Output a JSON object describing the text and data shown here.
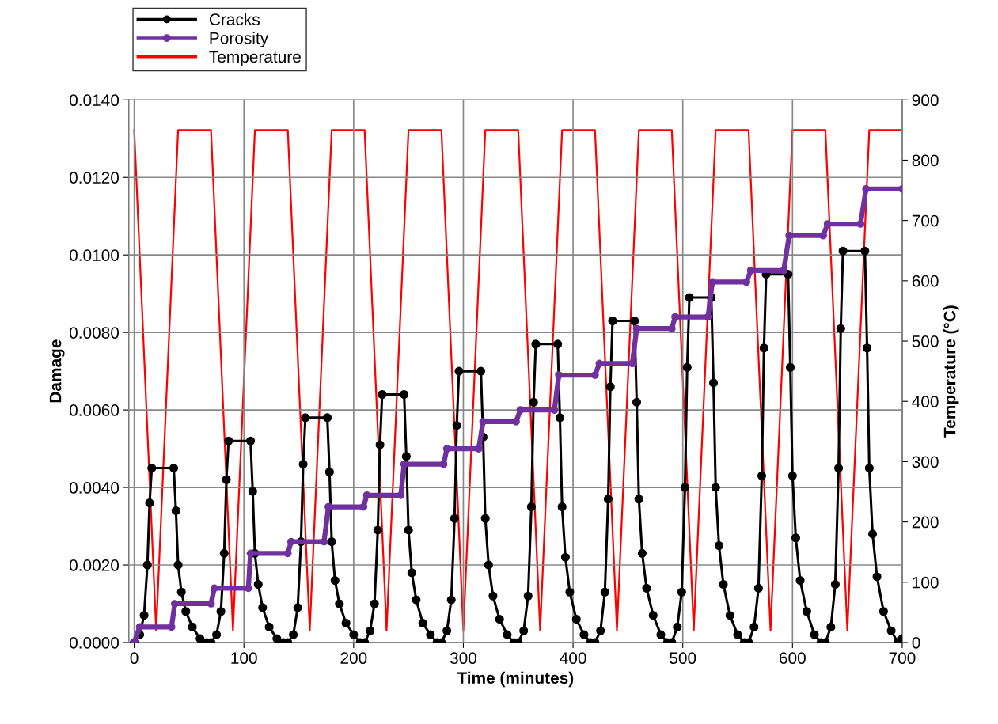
{
  "chart_data": {
    "type": "line",
    "xlabel": "Time (minutes)",
    "ylabel": "Damage",
    "y2label": "Temperature (°C)",
    "xlim": [
      -5,
      700
    ],
    "xticks": [
      0,
      100,
      200,
      300,
      400,
      500,
      600,
      700
    ],
    "ylim": [
      0,
      0.014
    ],
    "yticks": [
      {
        "value": 0,
        "label": "0.0000"
      },
      {
        "value": 0.002,
        "label": "0.0020"
      },
      {
        "value": 0.004,
        "label": "0.0040"
      },
      {
        "value": 0.006,
        "label": "0.0060"
      },
      {
        "value": 0.008,
        "label": "0.0080"
      },
      {
        "value": 0.01,
        "label": "0.0100"
      },
      {
        "value": 0.012,
        "label": "0.0120"
      },
      {
        "value": 0.014,
        "label": "0.0140"
      }
    ],
    "y2lim": [
      0,
      900
    ],
    "y2ticks": [
      0,
      100,
      200,
      300,
      400,
      500,
      600,
      700,
      800,
      900
    ],
    "grid": true,
    "legend": "top left",
    "series": [
      {
        "name": "Cracks",
        "color": "#000000",
        "marker": "circle",
        "x": [
          0,
          5,
          9,
          12,
          14,
          16,
          36,
          38,
          40,
          43,
          47,
          53,
          60,
          66,
          70,
          75,
          79,
          82,
          84,
          86,
          106,
          108,
          110,
          113,
          117,
          123,
          130,
          136,
          140,
          145,
          149,
          152,
          154,
          156,
          176,
          178,
          180,
          183,
          187,
          193,
          200,
          206,
          210,
          215,
          219,
          222,
          224,
          226,
          246,
          248,
          250,
          253,
          257,
          263,
          270,
          276,
          280,
          285,
          289,
          292,
          294,
          296,
          316,
          318,
          320,
          323,
          327,
          333,
          340,
          346,
          350,
          355,
          359,
          362,
          364,
          366,
          386,
          388,
          390,
          393,
          397,
          403,
          410,
          416,
          420,
          425,
          429,
          432,
          434,
          436,
          456,
          458,
          460,
          463,
          467,
          473,
          480,
          486,
          490,
          495,
          499,
          502,
          504,
          506,
          526,
          528,
          530,
          533,
          537,
          543,
          550,
          556,
          560,
          565,
          569,
          572,
          574,
          576,
          596,
          598,
          600,
          603,
          607,
          613,
          620,
          626,
          630,
          635,
          639,
          642,
          644,
          646,
          666,
          668,
          670,
          673,
          677,
          683,
          690,
          696,
          700
        ],
        "values": [
          0,
          0.0002,
          0.0007,
          0.002,
          0.0036,
          0.0045,
          0.0045,
          0.0034,
          0.002,
          0.0013,
          0.0008,
          0.0004,
          0.0001,
          0,
          0,
          0.0002,
          0.0008,
          0.0023,
          0.0042,
          0.0052,
          0.0052,
          0.0039,
          0.0023,
          0.0015,
          0.0009,
          0.0004,
          0.0001,
          0,
          0,
          0.0002,
          0.0009,
          0.0026,
          0.0046,
          0.0058,
          0.0058,
          0.0044,
          0.0026,
          0.0016,
          0.001,
          0.0005,
          0.0002,
          0,
          0,
          0.0003,
          0.001,
          0.0029,
          0.0051,
          0.0064,
          0.0064,
          0.0048,
          0.0029,
          0.0018,
          0.0011,
          0.0005,
          0.0002,
          0,
          0,
          0.0003,
          0.0011,
          0.0032,
          0.0056,
          0.007,
          0.007,
          0.0053,
          0.0032,
          0.002,
          0.0012,
          0.0006,
          0.0002,
          0,
          0,
          0.0003,
          0.0012,
          0.0035,
          0.0062,
          0.0077,
          0.0077,
          0.0058,
          0.0035,
          0.0022,
          0.0013,
          0.0006,
          0.0002,
          0,
          0,
          0.0003,
          0.0013,
          0.0037,
          0.0066,
          0.0083,
          0.0083,
          0.0062,
          0.0037,
          0.0023,
          0.0014,
          0.0007,
          0.0002,
          0,
          0,
          0.0004,
          0.0013,
          0.004,
          0.0071,
          0.0089,
          0.0089,
          0.0067,
          0.004,
          0.0025,
          0.0015,
          0.0007,
          0.0002,
          0,
          0,
          0.0004,
          0.0014,
          0.0043,
          0.0076,
          0.0095,
          0.0095,
          0.0071,
          0.0043,
          0.0027,
          0.0016,
          0.0008,
          0.0002,
          0,
          0,
          0.0004,
          0.0015,
          0.0045,
          0.0081,
          0.0101,
          0.0101,
          0.0076,
          0.0045,
          0.0028,
          0.0017,
          0.0008,
          0.0003,
          0,
          0.0001
        ]
      },
      {
        "name": "Porosity",
        "color": "#7030a0",
        "marker": "circle",
        "x": [
          0,
          5,
          34,
          37,
          70,
          73,
          104,
          106,
          140,
          143,
          173,
          177,
          209,
          212,
          243,
          246,
          282,
          285,
          314,
          318,
          348,
          352,
          383,
          387,
          420,
          424,
          454,
          458,
          490,
          493,
          523,
          527,
          558,
          562,
          592,
          597,
          628,
          632,
          662,
          667,
          700
        ],
        "values": [
          0,
          0.0004,
          0.0004,
          0.001,
          0.001,
          0.0014,
          0.0014,
          0.0023,
          0.0023,
          0.0026,
          0.0026,
          0.0035,
          0.0035,
          0.0038,
          0.0038,
          0.0046,
          0.0046,
          0.005,
          0.005,
          0.0057,
          0.0057,
          0.006,
          0.006,
          0.0069,
          0.0069,
          0.0072,
          0.0072,
          0.0081,
          0.0081,
          0.0084,
          0.0084,
          0.0093,
          0.0093,
          0.0096,
          0.0096,
          0.0105,
          0.0105,
          0.0108,
          0.0108,
          0.0117,
          0.0117
        ]
      },
      {
        "name": "Temperature",
        "color": "#ff0000",
        "axis": "y2",
        "marker": "none",
        "x": [
          0,
          20,
          40,
          70,
          90,
          110,
          140,
          160,
          180,
          210,
          230,
          250,
          280,
          300,
          320,
          350,
          370,
          390,
          420,
          440,
          460,
          490,
          510,
          530,
          560,
          580,
          600,
          630,
          650,
          670,
          700
        ],
        "values": [
          850,
          20,
          850,
          850,
          20,
          850,
          850,
          20,
          850,
          850,
          20,
          850,
          850,
          20,
          850,
          850,
          20,
          850,
          850,
          20,
          850,
          850,
          20,
          850,
          850,
          20,
          850,
          850,
          20,
          850,
          850
        ]
      }
    ]
  }
}
